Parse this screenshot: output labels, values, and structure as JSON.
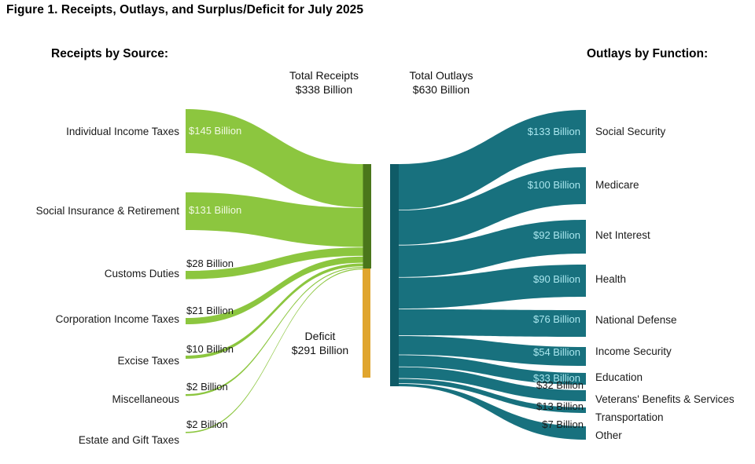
{
  "title": "Figure 1. Receipts, Outlays, and Surplus/Deficit for July 2025",
  "receipts_header": "Receipts by Source:",
  "outlays_header": "Outlays by Function:",
  "totals": {
    "receipts_label": "Total Receipts",
    "receipts_value": "$338 Billion",
    "outlays_label": "Total Outlays",
    "outlays_value": "$630 Billion",
    "deficit_label": "Deficit",
    "deficit_value": "$291 Billion"
  },
  "colors": {
    "receipt_flow": "#8cc63f",
    "receipts_node": "#4a761b",
    "deficit_node": "#e0a52e",
    "outlay_flow": "#18717e",
    "outlays_node": "#0f5b67",
    "value_text_on_green": "#f2f9e4",
    "value_text_on_teal": "#a9e6ee",
    "label_text": "#1a1a1a"
  },
  "chart_data": {
    "type": "sankey",
    "title": "Receipts, Outlays, and Surplus/Deficit for July 2025",
    "unit": "USD billions",
    "total_receipts": 338,
    "total_outlays": 630,
    "deficit": 291,
    "receipts": [
      {
        "label": "Individual Income Taxes",
        "value": 145,
        "value_label": "$145 Billion"
      },
      {
        "label": "Social Insurance & Retirement",
        "value": 131,
        "value_label": "$131 Billion"
      },
      {
        "label": "Customs Duties",
        "value": 28,
        "value_label": "$28 Billion"
      },
      {
        "label": "Corporation Income Taxes",
        "value": 21,
        "value_label": "$21 Billion"
      },
      {
        "label": "Excise Taxes",
        "value": 10,
        "value_label": "$10 Billion"
      },
      {
        "label": "Miscellaneous",
        "value": 2,
        "value_label": "$2 Billion"
      },
      {
        "label": "Estate and Gift Taxes",
        "value": 2,
        "value_label": "$2 Billion"
      }
    ],
    "outlays": [
      {
        "label": "Social Security",
        "value": 133,
        "value_label": "$133 Billion"
      },
      {
        "label": "Medicare",
        "value": 100,
        "value_label": "$100 Billion"
      },
      {
        "label": "Net Interest",
        "value": 92,
        "value_label": "$92 Billion"
      },
      {
        "label": "Health",
        "value": 90,
        "value_label": "$90 Billion"
      },
      {
        "label": "National Defense",
        "value": 76,
        "value_label": "$76 Billion"
      },
      {
        "label": "Income Security",
        "value": 54,
        "value_label": "$54 Billion"
      },
      {
        "label": "Education",
        "value": 33,
        "value_label": "$33 Billion"
      },
      {
        "label": "Veterans' Benefits & Services",
        "value": 32,
        "value_label": "$32 Billion"
      },
      {
        "label": "Transportation",
        "value": 13,
        "value_label": "$13 Billion"
      },
      {
        "label": "Other",
        "value": 7,
        "value_label": "$7 Billion"
      }
    ]
  }
}
